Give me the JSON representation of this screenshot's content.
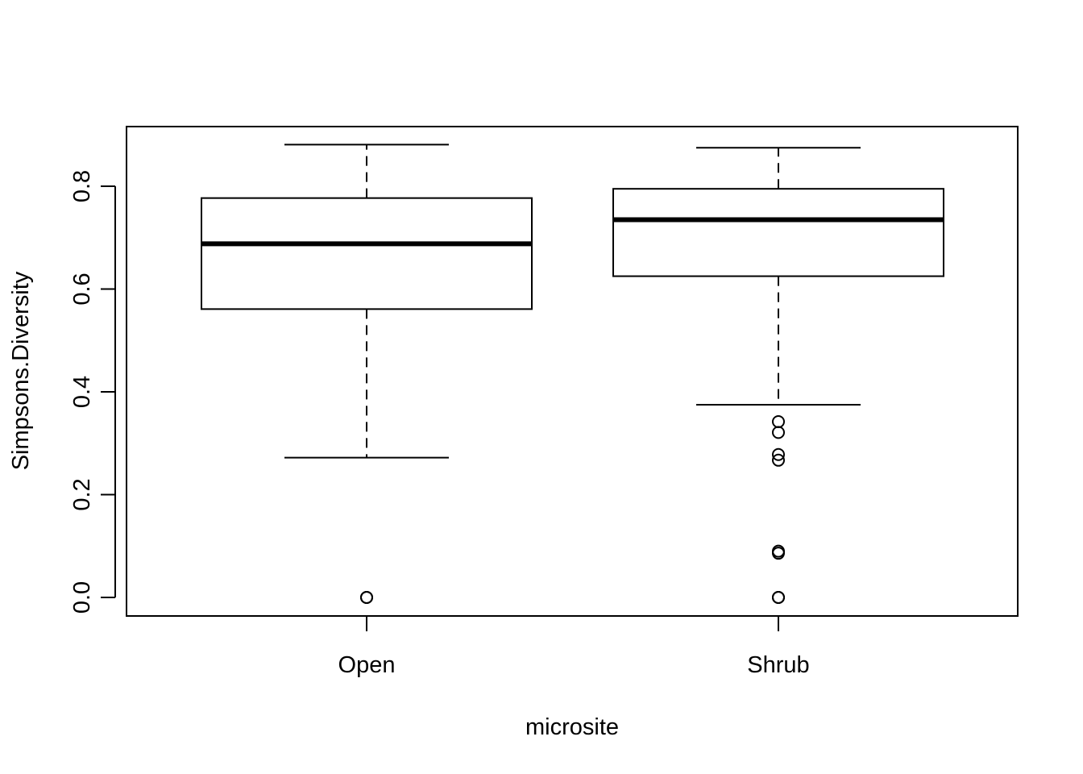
{
  "chart_data": {
    "type": "boxplot",
    "title": "",
    "xlabel": "microsite",
    "ylabel": "Simpsons.Diversity",
    "ylim": [
      -0.035,
      0.915
    ],
    "yticks": [
      0.0,
      0.2,
      0.4,
      0.6,
      0.8
    ],
    "ytick_labels": [
      "0.0",
      "0.2",
      "0.4",
      "0.6",
      "0.8"
    ],
    "grid": false,
    "legend": "none",
    "categories": [
      "Open",
      "Shrub"
    ],
    "boxes": [
      {
        "name": "Open",
        "whisker_low": 0.272,
        "q1": 0.561,
        "median": 0.688,
        "q3": 0.777,
        "whisker_high": 0.881,
        "outliers": [
          0.0,
          0.0,
          0.0
        ]
      },
      {
        "name": "Shrub",
        "whisker_low": 0.375,
        "q1": 0.625,
        "median": 0.735,
        "q3": 0.795,
        "whisker_high": 0.875,
        "outliers": [
          0.342,
          0.321,
          0.278,
          0.267,
          0.09,
          0.086,
          0.0,
          0.0,
          0.0
        ]
      }
    ]
  }
}
